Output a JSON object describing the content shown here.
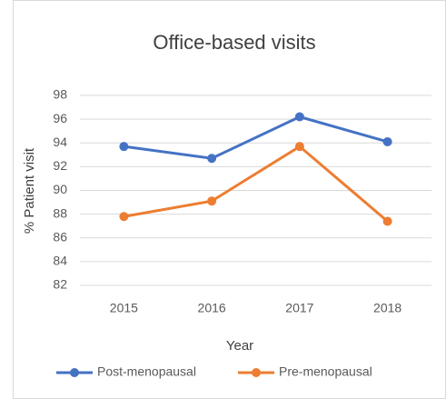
{
  "chart_data": {
    "type": "line",
    "title": "Office-based visits",
    "x_label": "Year",
    "y_label": "% Patient visit",
    "categories": [
      "2015",
      "2016",
      "2017",
      "2018"
    ],
    "series": [
      {
        "name": "Post-menopausal",
        "color": "#4472c4",
        "values": [
          93.7,
          92.7,
          96.2,
          94.1
        ]
      },
      {
        "name": "Pre-menopausal",
        "color": "#ed7d31",
        "values": [
          87.8,
          89.1,
          93.7,
          87.4
        ]
      }
    ],
    "ylim": [
      82,
      98
    ],
    "yticks": [
      82,
      84,
      86,
      88,
      90,
      92,
      94,
      96,
      98
    ],
    "grid": true,
    "legend": "bottom"
  }
}
